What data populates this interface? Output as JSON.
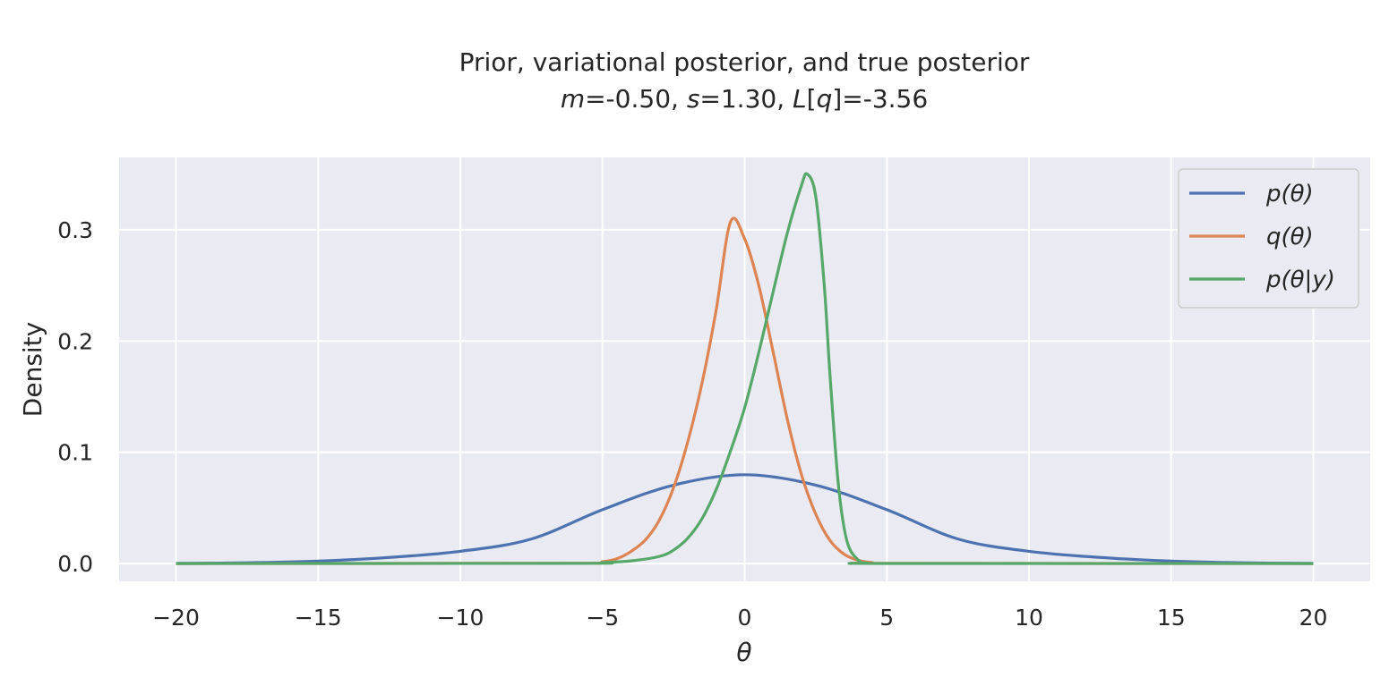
{
  "chart_data": {
    "type": "line",
    "title": "Prior, variational posterior, and true posterior",
    "subtitle": {
      "parts": [
        {
          "text": "m",
          "italic": true
        },
        {
          "text": "=-0.50, ",
          "italic": false
        },
        {
          "text": "s",
          "italic": true
        },
        {
          "text": "=1.30, ",
          "italic": false
        },
        {
          "text": "L",
          "italic": true
        },
        {
          "text": "[",
          "italic": false
        },
        {
          "text": "q",
          "italic": true
        },
        {
          "text": "]=-3.56",
          "italic": false
        }
      ]
    },
    "xlabel": "θ",
    "ylabel": "Density",
    "xlim": [
      -22,
      22
    ],
    "ylim": [
      -0.016,
      0.365
    ],
    "xticks": [
      -20,
      -15,
      -10,
      -5,
      0,
      5,
      10,
      15,
      20
    ],
    "xtick_labels": [
      "−20",
      "−15",
      "−10",
      "−5",
      "0",
      "5",
      "10",
      "15",
      "20"
    ],
    "yticks": [
      0.0,
      0.1,
      0.2,
      0.3
    ],
    "ytick_labels": [
      "0.0",
      "0.1",
      "0.2",
      "0.3"
    ],
    "grid": true,
    "legend_position": "top-right",
    "series": [
      {
        "name": "p(θ)",
        "color": "#4c72b0",
        "x": [
          -20,
          -17.5,
          -15,
          -12.5,
          -10,
          -7.5,
          -5,
          -2.5,
          0,
          2.5,
          5,
          7.5,
          10,
          12.5,
          15,
          17.5,
          20
        ],
        "y": [
          0.0002,
          0.0007,
          0.0022,
          0.0055,
          0.011,
          0.0221,
          0.0484,
          0.0705,
          0.0798,
          0.0705,
          0.0484,
          0.0221,
          0.011,
          0.0055,
          0.0022,
          0.0007,
          0.0002
        ]
      },
      {
        "name": "q(θ)",
        "color": "#dd8452",
        "x": [
          -20,
          -6,
          -5,
          -4.5,
          -4,
          -3.5,
          -3,
          -2.5,
          -2,
          -1.5,
          -1,
          -0.5,
          0,
          0.5,
          1,
          1.5,
          2,
          2.5,
          3,
          3.5,
          4,
          4.5,
          5,
          20
        ],
        "y": [
          0,
          0.0003,
          0.0017,
          0.0043,
          0.0108,
          0.021,
          0.0391,
          0.0682,
          0.1095,
          0.1621,
          0.2281,
          0.3069,
          0.2918,
          0.2496,
          0.1904,
          0.1298,
          0.0798,
          0.0444,
          0.0208,
          0.0084,
          0.0029,
          0.0008,
          0.0002,
          0
        ]
      },
      {
        "name": "p(θ|y)",
        "color": "#55a868",
        "x": [
          -20,
          -6,
          -5,
          -4,
          -3,
          -2.5,
          -2,
          -1.5,
          -1,
          -0.5,
          0,
          0.5,
          1,
          1.5,
          2,
          2.2,
          2.5,
          2.8,
          3,
          3.3,
          3.6,
          4,
          4.3,
          5,
          20
        ],
        "y": [
          0,
          0.0002,
          0.0009,
          0.0024,
          0.0064,
          0.0121,
          0.0228,
          0.0403,
          0.0666,
          0.101,
          0.14,
          0.19,
          0.244,
          0.297,
          0.34,
          0.35,
          0.33,
          0.25,
          0.17,
          0.07,
          0.02,
          0.003,
          0.0005,
          0.0001,
          0
        ]
      }
    ]
  }
}
